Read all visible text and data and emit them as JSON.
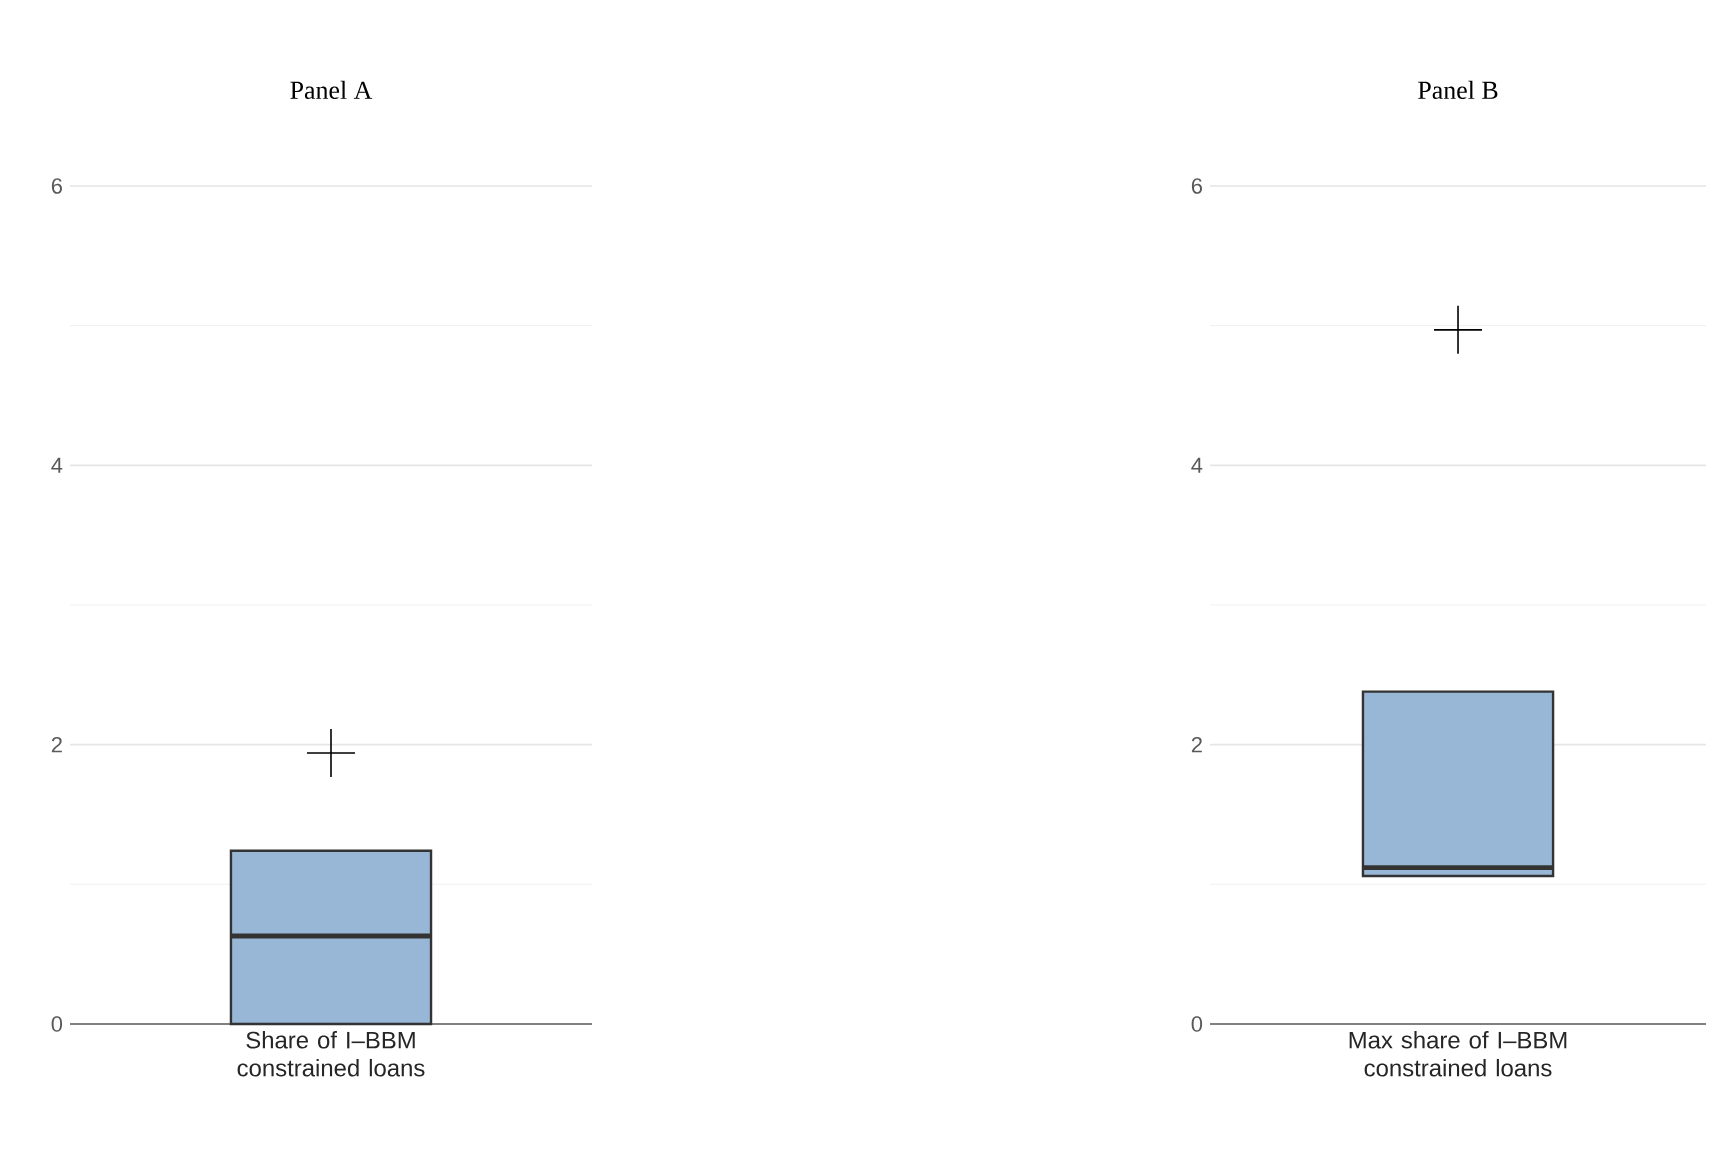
{
  "chart_data": [
    {
      "type": "box",
      "title": "Panel A",
      "categories": [
        "Share of I–BBM constrained loans"
      ],
      "color": "#98b6d6",
      "ylim": [
        0,
        6
      ],
      "yticks": [
        0,
        2,
        4,
        6
      ],
      "grid": "y",
      "boxes": [
        {
          "low": 0,
          "q1": 0,
          "median": 0.63,
          "q3": 1.24,
          "high": 1.24,
          "outliers": [
            1.94
          ]
        }
      ]
    },
    {
      "type": "box",
      "title": "Panel B",
      "categories": [
        "Max share of I–BBM constrained loans"
      ],
      "color": "#98b6d6",
      "ylim": [
        0,
        6
      ],
      "yticks": [
        0,
        2,
        4,
        6
      ],
      "grid": "y",
      "boxes": [
        {
          "low": 1.06,
          "q1": 1.06,
          "median": 1.12,
          "q3": 2.38,
          "high": 2.38,
          "outliers": [
            4.97
          ]
        }
      ]
    }
  ]
}
